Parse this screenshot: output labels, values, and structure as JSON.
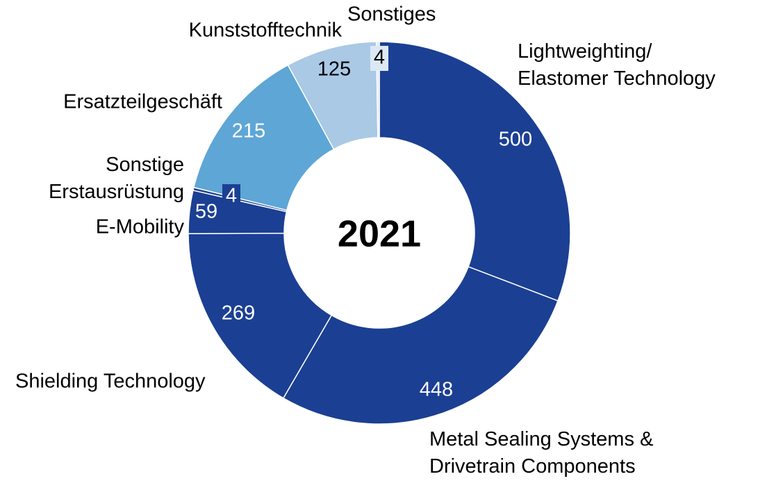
{
  "chart_data": {
    "type": "donut",
    "title": "2021",
    "categories": [
      "Lightweighting/\nElastomer Technology",
      "Metal Sealing Systems &\nDrivetrain Components",
      "Shielding Technology",
      "E-Mobility",
      "Sonstige\nErstausrüstung",
      "Ersatzteilgeschäft",
      "Kunststofftechnik",
      "Sonstiges"
    ],
    "values": [
      500,
      448,
      269,
      59,
      4,
      215,
      125,
      4
    ],
    "colors": [
      "#1b3f93",
      "#1b3f93",
      "#1b3f93",
      "#1b3f93",
      "#1b3f93",
      "#5ea6d6",
      "#a9c9e5",
      "#dce8f4"
    ]
  }
}
